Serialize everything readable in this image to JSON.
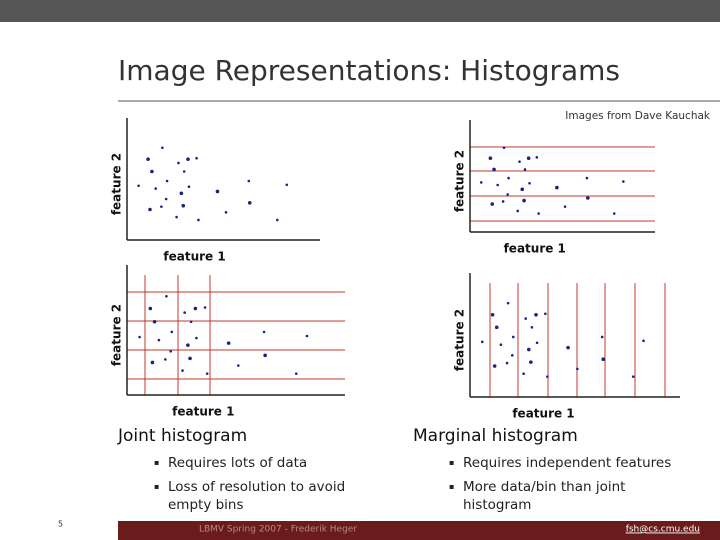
{
  "title": "Image Representations: Histograms",
  "credit": "Images from Dave Kauchak",
  "panels": [
    {
      "x_label": "feature 1",
      "y_label": "feature 2"
    },
    {
      "x_label": "feature 1",
      "y_label": "feature 2"
    },
    {
      "x_label": "feature 1",
      "y_label": "feature 2"
    },
    {
      "x_label": "feature 1",
      "y_label": "feature 2"
    }
  ],
  "columns": [
    {
      "heading": "Joint histogram",
      "bullets": [
        "Requires lots of data",
        "Loss of resolution to avoid empty bins"
      ]
    },
    {
      "heading": "Marginal histogram",
      "bullets": [
        "Requires independent features",
        "More data/bin than joint histogram"
      ]
    }
  ],
  "footer": {
    "page": "5",
    "center": "LBMV Spring 2007 - Frederik Heger",
    "email": "fsh@cs.cmu.edu"
  }
}
